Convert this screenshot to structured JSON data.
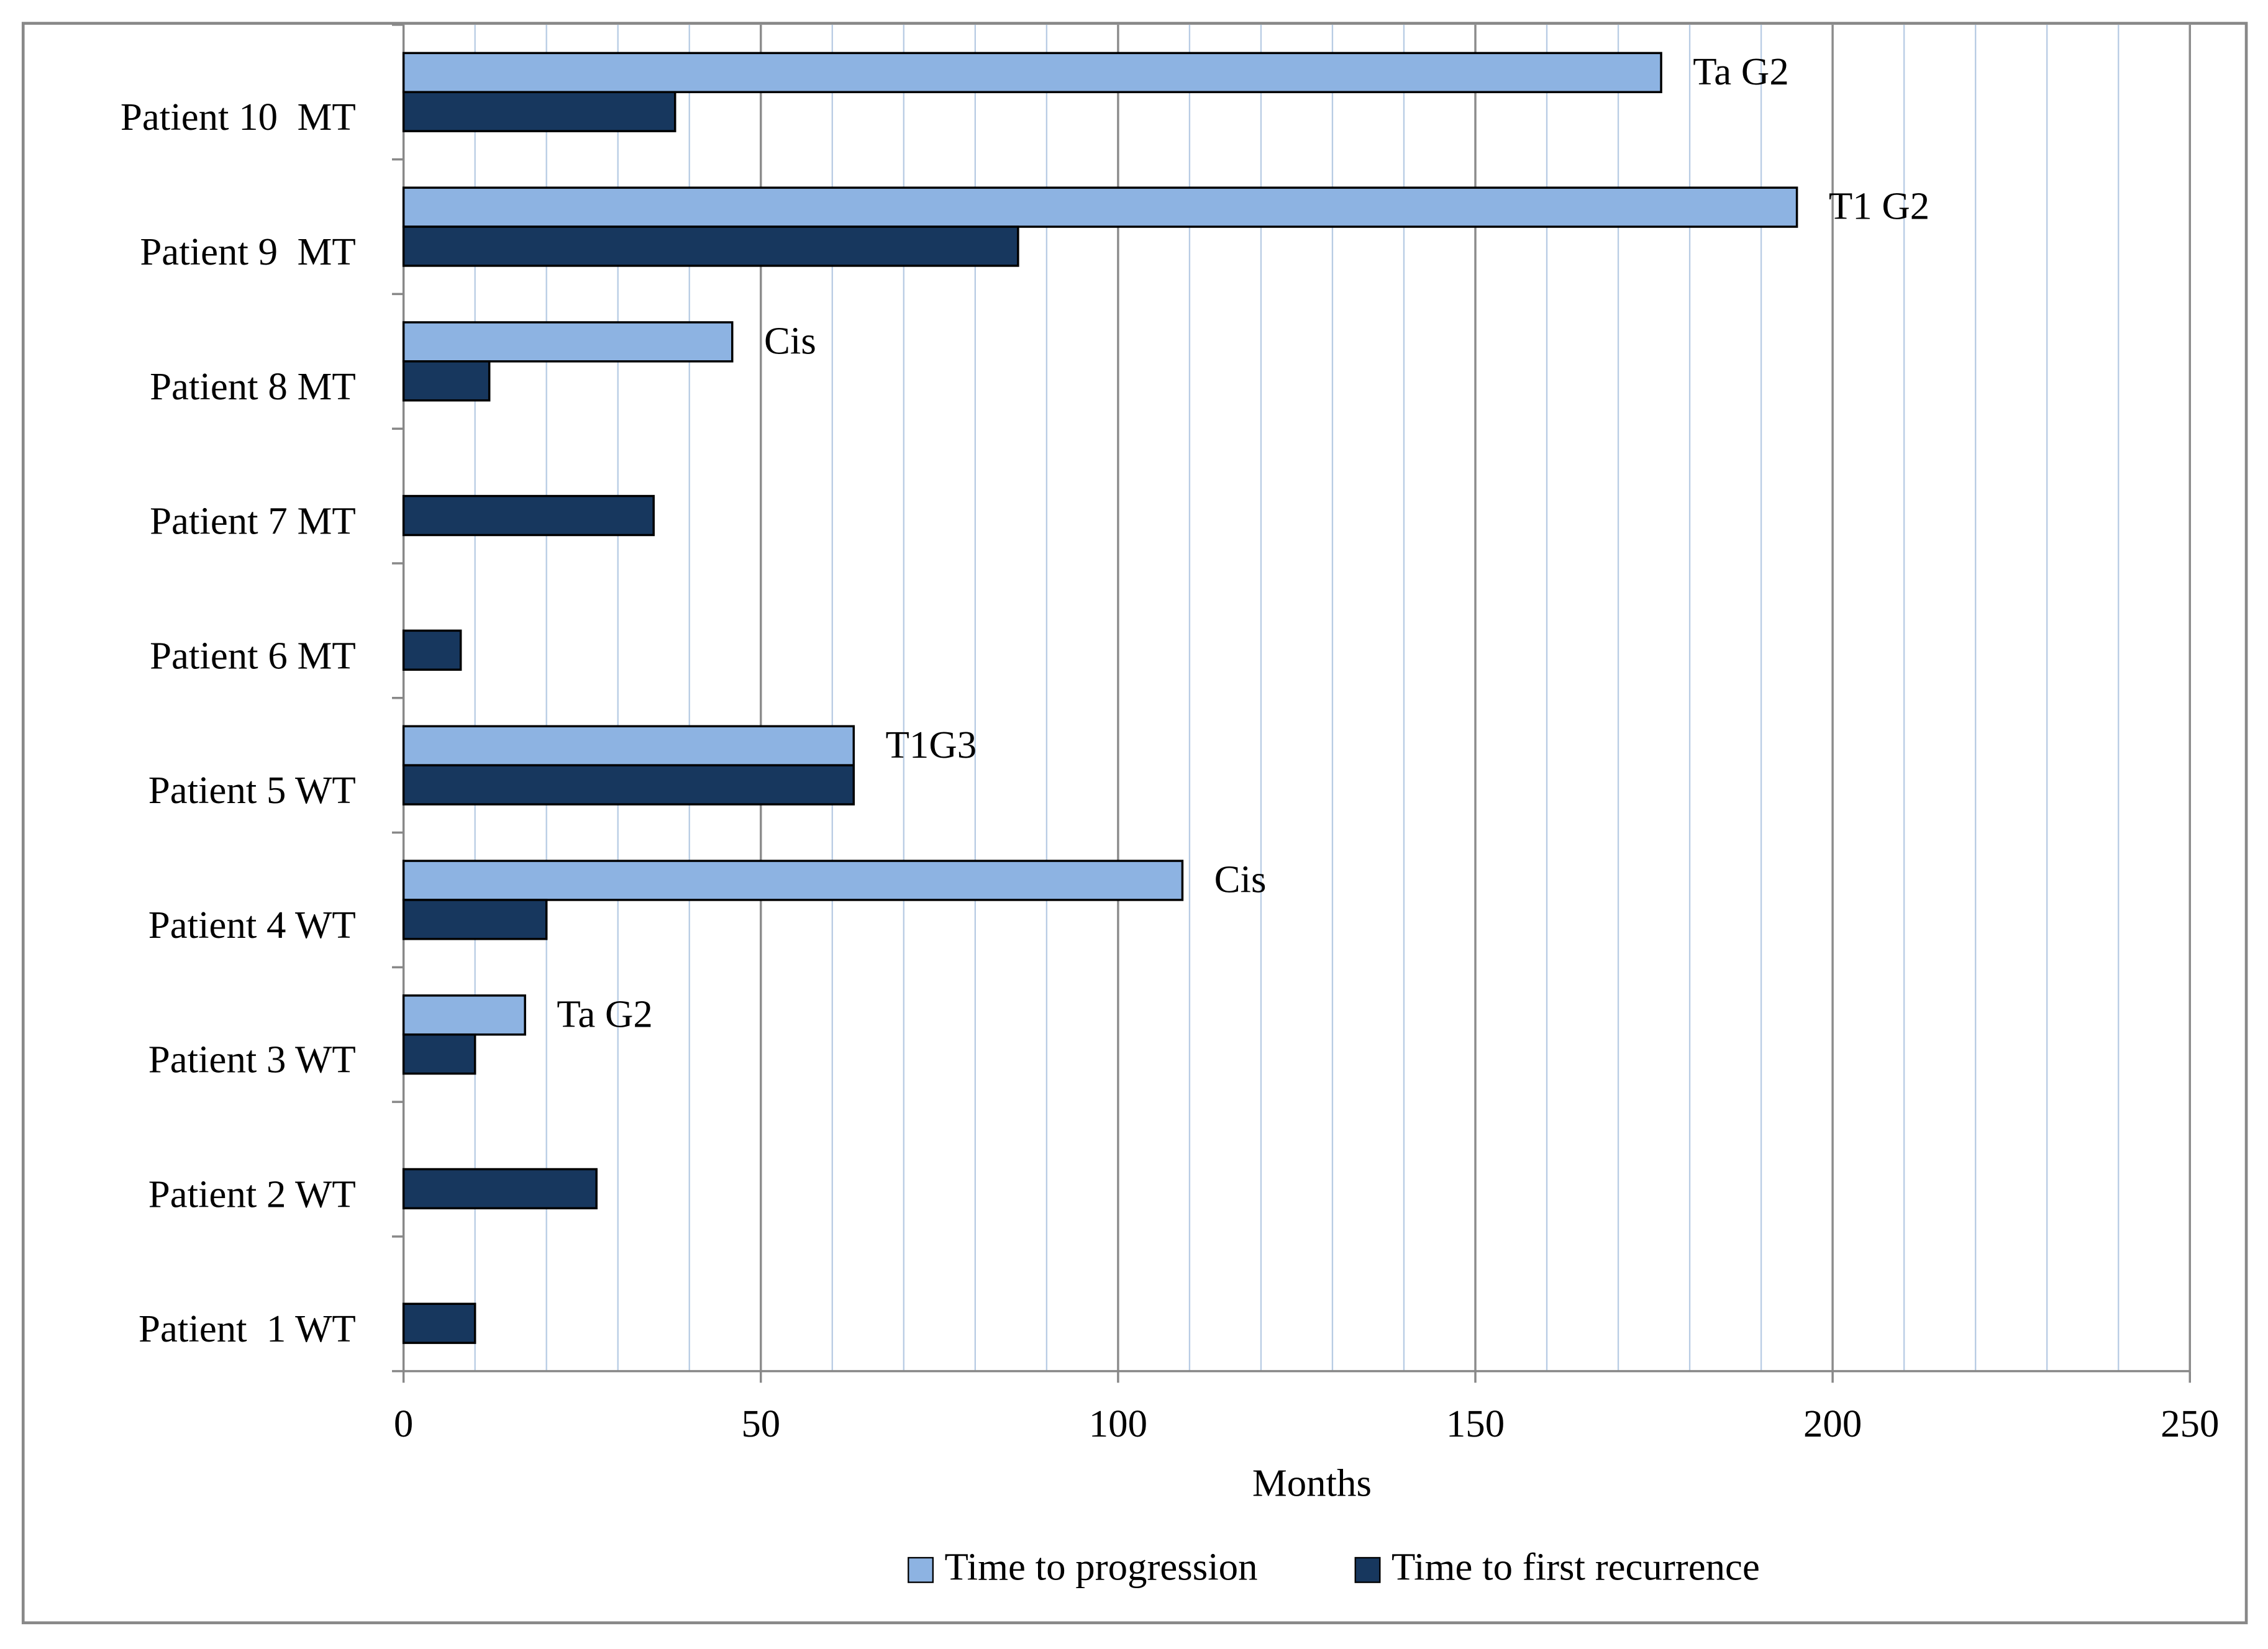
{
  "chart_data": {
    "type": "bar",
    "orientation": "horizontal",
    "xlabel": "Months",
    "categories": [
      "Patient  1 WT",
      "Patient 2 WT",
      "Patient 3 WT",
      "Patient 4 WT",
      "Patient 5 WT",
      "Patient 6 MT",
      "Patient 7 MT",
      "Patient 8 MT",
      "Patient 9  MT",
      "Patient 10  MT"
    ],
    "series": [
      {
        "name": "Time to progression",
        "color": "#8db3e2",
        "values": [
          null,
          null,
          17,
          109,
          63,
          null,
          null,
          46,
          195,
          176
        ]
      },
      {
        "name": "Time to first recurrence",
        "color": "#17375e",
        "values": [
          10,
          27,
          10,
          20,
          63,
          8,
          35,
          12,
          86,
          38
        ]
      }
    ],
    "annotations": [
      null,
      null,
      "Ta G2",
      "Cis",
      "T1G3",
      null,
      null,
      "Cis",
      "T1 G2",
      "Ta G2"
    ],
    "xlim": [
      0,
      250
    ],
    "xticks": [
      0,
      50,
      100,
      150,
      200,
      250
    ],
    "minor_grid_step": 10,
    "grid": true,
    "legend": "bottom"
  }
}
